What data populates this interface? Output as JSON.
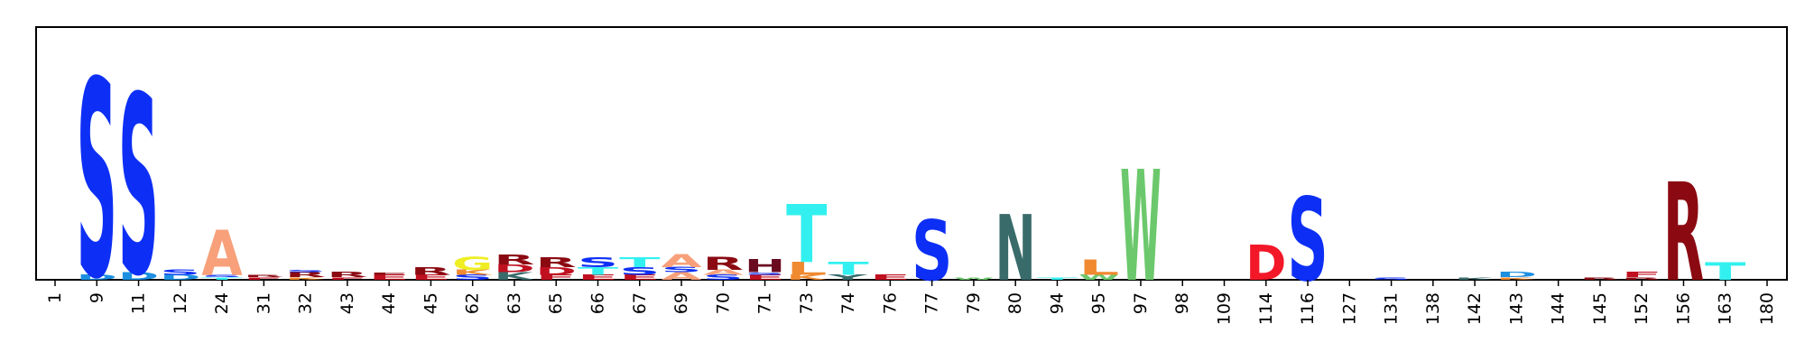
{
  "chart_data": {
    "type": "sequence-logo",
    "title": "",
    "xlabel": "",
    "ylabel": "",
    "y_max": 1.0,
    "grid": false,
    "positions": [
      "1",
      "9",
      "11",
      "12",
      "24",
      "31",
      "32",
      "43",
      "44",
      "45",
      "62",
      "63",
      "65",
      "66",
      "67",
      "69",
      "70",
      "71",
      "73",
      "74",
      "76",
      "77",
      "79",
      "80",
      "94",
      "95",
      "97",
      "98",
      "109",
      "114",
      "116",
      "127",
      "131",
      "138",
      "142",
      "143",
      "144",
      "145",
      "152",
      "156",
      "163",
      "180"
    ],
    "stacks": [
      [],
      [
        {
          "letter": "D",
          "height": 0.02,
          "color": "#1c8fe0"
        },
        {
          "letter": "S",
          "height": 0.78,
          "color": "#0d2ff5"
        }
      ],
      [
        {
          "letter": "D",
          "height": 0.03,
          "color": "#1c8fe0"
        },
        {
          "letter": "S",
          "height": 0.71,
          "color": "#0d2ff5"
        }
      ],
      [
        {
          "letter": "D",
          "height": 0.02,
          "color": "#1c8fe0"
        },
        {
          "letter": "S",
          "height": 0.02,
          "color": "#0d2ff5"
        }
      ],
      [
        {
          "letter": "T",
          "height": 0.01,
          "color": "#33f0f0"
        },
        {
          "letter": "S",
          "height": 0.01,
          "color": "#0d2ff5"
        },
        {
          "letter": "A",
          "height": 0.18,
          "color": "#f7a07a"
        }
      ],
      [
        {
          "letter": "F",
          "height": 0.01,
          "color": "#c01020"
        },
        {
          "letter": "R",
          "height": 0.01,
          "color": "#8b0a12"
        }
      ],
      [
        {
          "letter": "K",
          "height": 0.01,
          "color": "#f08a30"
        },
        {
          "letter": "R",
          "height": 0.02,
          "color": "#8b0a12"
        },
        {
          "letter": "S",
          "height": 0.01,
          "color": "#0d2ff5"
        }
      ],
      [
        {
          "letter": "F",
          "height": 0.01,
          "color": "#c01020"
        },
        {
          "letter": "R",
          "height": 0.02,
          "color": "#8b0a12"
        }
      ],
      [
        {
          "letter": "E",
          "height": 0.02,
          "color": "#c01020"
        },
        {
          "letter": "F",
          "height": 0.01,
          "color": "#8b0a12"
        }
      ],
      [
        {
          "letter": "E",
          "height": 0.02,
          "color": "#c01020"
        },
        {
          "letter": "R",
          "height": 0.03,
          "color": "#8b0a12"
        }
      ],
      [
        {
          "letter": "S",
          "height": 0.02,
          "color": "#0d2ff5"
        },
        {
          "letter": "K",
          "height": 0.02,
          "color": "#f08a30"
        },
        {
          "letter": "G",
          "height": 0.05,
          "color": "#eeee22"
        }
      ],
      [
        {
          "letter": "K",
          "height": 0.03,
          "color": "#3a6b6b"
        },
        {
          "letter": "D",
          "height": 0.03,
          "color": "#c01020"
        },
        {
          "letter": "R",
          "height": 0.04,
          "color": "#8b0a12"
        }
      ],
      [
        {
          "letter": "F",
          "height": 0.02,
          "color": "#c01020"
        },
        {
          "letter": "D",
          "height": 0.03,
          "color": "#c01020"
        },
        {
          "letter": "R",
          "height": 0.04,
          "color": "#8b0a12"
        }
      ],
      [
        {
          "letter": "E",
          "height": 0.02,
          "color": "#c01020"
        },
        {
          "letter": "T",
          "height": 0.03,
          "color": "#33f0f0"
        },
        {
          "letter": "S",
          "height": 0.04,
          "color": "#0d2ff5"
        }
      ],
      [
        {
          "letter": "E",
          "height": 0.02,
          "color": "#c01020"
        },
        {
          "letter": "S",
          "height": 0.03,
          "color": "#0d2ff5"
        },
        {
          "letter": "T",
          "height": 0.04,
          "color": "#33f0f0"
        }
      ],
      [
        {
          "letter": "A",
          "height": 0.03,
          "color": "#f7a07a"
        },
        {
          "letter": "S",
          "height": 0.02,
          "color": "#0d2ff5"
        },
        {
          "letter": "A",
          "height": 0.05,
          "color": "#f7a07a"
        }
      ],
      [
        {
          "letter": "S",
          "height": 0.02,
          "color": "#0d2ff5"
        },
        {
          "letter": "A",
          "height": 0.02,
          "color": "#f7a07a"
        },
        {
          "letter": "R",
          "height": 0.05,
          "color": "#8b0a12"
        }
      ],
      [
        {
          "letter": "E",
          "height": 0.02,
          "color": "#c01020"
        },
        {
          "letter": "S",
          "height": 0.01,
          "color": "#0d2ff5"
        },
        {
          "letter": "H",
          "height": 0.05,
          "color": "#6a0a20"
        }
      ],
      [
        {
          "letter": "K",
          "height": 0.02,
          "color": "#f08a30"
        },
        {
          "letter": "L",
          "height": 0.05,
          "color": "#f08a30"
        },
        {
          "letter": "T",
          "height": 0.23,
          "color": "#33f0f0"
        }
      ],
      [
        {
          "letter": "Y",
          "height": 0.02,
          "color": "#3a6b6b"
        },
        {
          "letter": "T",
          "height": 0.05,
          "color": "#33f0f0"
        }
      ],
      [
        {
          "letter": "E",
          "height": 0.02,
          "color": "#c01020"
        }
      ],
      [
        {
          "letter": "S",
          "height": 0.24,
          "color": "#0d2ff5"
        }
      ],
      [
        {
          "letter": "W",
          "height": 0.01,
          "color": "#6cc86c"
        }
      ],
      [
        {
          "letter": "N",
          "height": 0.26,
          "color": "#3a6b6b"
        }
      ],
      [
        {
          "letter": "T",
          "height": 0.01,
          "color": "#33f0f0"
        }
      ],
      [
        {
          "letter": "W",
          "height": 0.02,
          "color": "#6cc86c"
        },
        {
          "letter": "L",
          "height": 0.06,
          "color": "#f08a30"
        }
      ],
      [
        {
          "letter": "W",
          "height": 0.44,
          "color": "#6cc86c"
        }
      ],
      [],
      [],
      [
        {
          "letter": "D",
          "height": 0.14,
          "color": "#f21828"
        }
      ],
      [
        {
          "letter": "S",
          "height": 0.33,
          "color": "#0d2ff5"
        }
      ],
      [],
      [
        {
          "letter": "S",
          "height": 0.01,
          "color": "#0d2ff5"
        }
      ],
      [],
      [
        {
          "letter": "K",
          "height": 0.01,
          "color": "#3a6b6b"
        }
      ],
      [
        {
          "letter": "K",
          "height": 0.01,
          "color": "#f08a30"
        },
        {
          "letter": "D",
          "height": 0.02,
          "color": "#1c8fe0"
        }
      ],
      [],
      [
        {
          "letter": "R",
          "height": 0.01,
          "color": "#8b0a12"
        }
      ],
      [
        {
          "letter": "R",
          "height": 0.01,
          "color": "#8b0a12"
        },
        {
          "letter": "F",
          "height": 0.02,
          "color": "#c01020"
        }
      ],
      [
        {
          "letter": "R",
          "height": 0.39,
          "color": "#8b0a12"
        }
      ],
      [
        {
          "letter": "T",
          "height": 0.07,
          "color": "#33f0f0"
        }
      ],
      []
    ]
  }
}
